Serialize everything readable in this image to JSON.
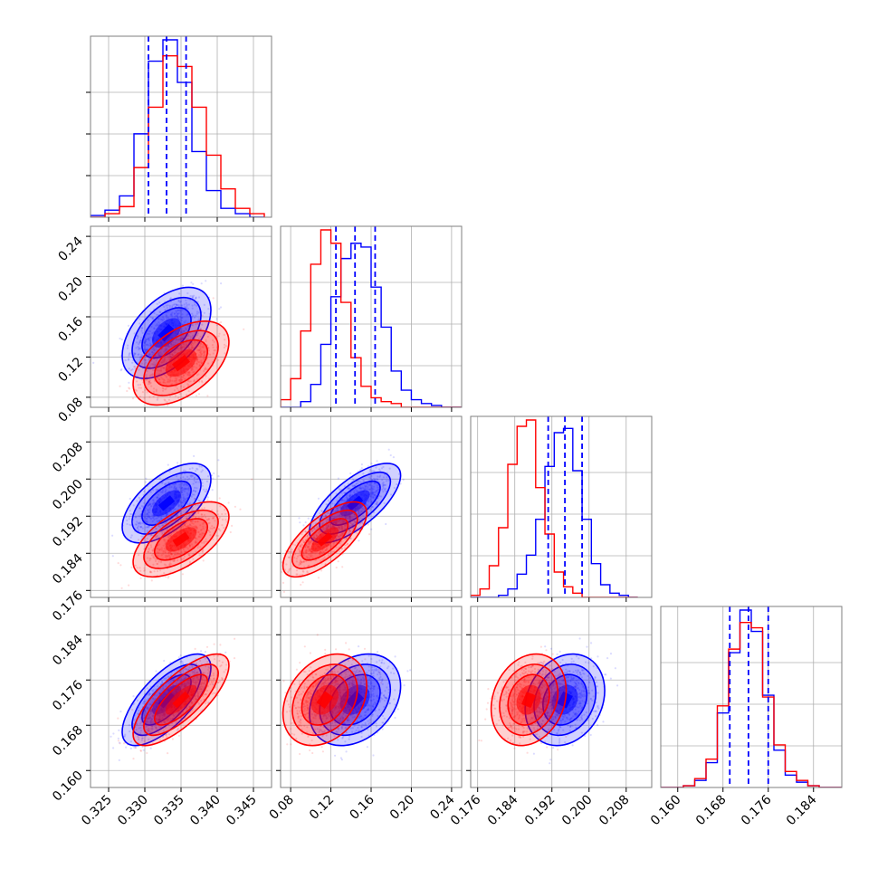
{
  "chart_data": {
    "type": "corner",
    "grid": true,
    "colors": {
      "blue": "#0000ff",
      "red": "#ff0000"
    },
    "params": [
      {
        "range": [
          0.3225,
          0.3475
        ],
        "ticks": [
          "0.325",
          "0.330",
          "0.335",
          "0.340",
          "0.345"
        ],
        "tick_values": [
          0.325,
          0.33,
          0.335,
          0.34,
          0.345
        ]
      },
      {
        "range": [
          0.07,
          0.25
        ],
        "ticks": [
          "0.08",
          "0.12",
          "0.16",
          "0.20",
          "0.24"
        ],
        "tick_values": [
          0.08,
          0.12,
          0.16,
          0.2,
          0.24
        ]
      },
      {
        "range": [
          0.1745,
          0.2135
        ],
        "ticks": [
          "0.176",
          "0.184",
          "0.192",
          "0.200",
          "0.208"
        ],
        "tick_values": [
          0.176,
          0.184,
          0.192,
          0.2,
          0.208
        ]
      },
      {
        "range": [
          0.157,
          0.189
        ],
        "ticks": [
          "0.160",
          "0.168",
          "0.176",
          "0.184"
        ],
        "tick_values": [
          0.16,
          0.168,
          0.176,
          0.184
        ]
      }
    ],
    "series": [
      {
        "color": "blue",
        "means": [
          0.333,
          0.144,
          0.1948,
          0.1725
        ],
        "sds": [
          0.0025,
          0.0185,
          0.0035,
          0.0033
        ],
        "corr": [
          [
            1,
            0.5,
            0.6,
            0.7
          ],
          [
            0.5,
            1,
            0.7,
            0.3
          ],
          [
            0.6,
            0.7,
            1,
            0.2
          ],
          [
            0.7,
            0.3,
            0.2,
            1
          ]
        ]
      },
      {
        "color": "red",
        "means": [
          0.335,
          0.114,
          0.187,
          0.1725
        ],
        "sds": [
          0.0027,
          0.017,
          0.0033,
          0.0033
        ],
        "corr": [
          [
            1,
            0.5,
            0.6,
            0.75
          ],
          [
            0.5,
            1,
            0.7,
            0.3
          ],
          [
            0.6,
            0.7,
            1,
            0.2
          ],
          [
            0.75,
            0.3,
            0.2,
            1
          ]
        ]
      }
    ],
    "quantile_lines": [
      [
        0.3305,
        0.333,
        0.3357
      ],
      [
        0.125,
        0.144,
        0.164
      ],
      [
        0.1912,
        0.1948,
        0.1985
      ],
      [
        0.1692,
        0.1725,
        0.176
      ]
    ],
    "histograms": [
      {
        "edges": [
          0.3225,
          0.3245,
          0.3265,
          0.3285,
          0.3305,
          0.3325,
          0.3345,
          0.3365,
          0.3385,
          0.3405,
          0.3425,
          0.3445,
          0.3465
        ],
        "blue": [
          0.01,
          0.04,
          0.12,
          0.47,
          0.88,
          1.0,
          0.76,
          0.37,
          0.15,
          0.05,
          0.02,
          0.0
        ],
        "red": [
          0.0,
          0.02,
          0.06,
          0.28,
          0.62,
          0.91,
          0.85,
          0.62,
          0.35,
          0.16,
          0.05,
          0.02
        ]
      },
      {
        "edges": [
          0.07,
          0.08,
          0.09,
          0.1,
          0.11,
          0.12,
          0.13,
          0.14,
          0.15,
          0.16,
          0.17,
          0.18,
          0.19,
          0.2,
          0.21,
          0.22,
          0.23,
          0.24,
          0.25
        ],
        "blue": [
          0.0,
          0.0,
          0.03,
          0.12,
          0.33,
          0.58,
          0.78,
          0.86,
          0.84,
          0.63,
          0.42,
          0.19,
          0.09,
          0.04,
          0.02,
          0.01,
          0.0,
          0.0
        ],
        "red": [
          0.04,
          0.15,
          0.4,
          0.75,
          0.93,
          0.86,
          0.55,
          0.26,
          0.11,
          0.05,
          0.03,
          0.02,
          0.0,
          0.0,
          0.0,
          0.0,
          0.0,
          0.0
        ]
      },
      {
        "edges": [
          0.1745,
          0.1765,
          0.1785,
          0.1805,
          0.1825,
          0.1845,
          0.1865,
          0.1885,
          0.1905,
          0.1925,
          0.1945,
          0.1965,
          0.1985,
          0.2005,
          0.2025,
          0.2045,
          0.2065,
          0.2085,
          0.2105
        ],
        "blue": [
          0.0,
          0.0,
          0.0,
          0.01,
          0.04,
          0.11,
          0.2,
          0.37,
          0.62,
          0.78,
          0.8,
          0.6,
          0.37,
          0.16,
          0.06,
          0.02,
          0.01,
          0.0
        ],
        "red": [
          0.01,
          0.04,
          0.15,
          0.33,
          0.63,
          0.81,
          0.84,
          0.52,
          0.3,
          0.12,
          0.05,
          0.02,
          0.0,
          0.0,
          0.0,
          0.0,
          0.0,
          0.0
        ]
      },
      {
        "edges": [
          0.157,
          0.159,
          0.161,
          0.163,
          0.165,
          0.167,
          0.169,
          0.171,
          0.173,
          0.175,
          0.177,
          0.179,
          0.181,
          0.183,
          0.185,
          0.187,
          0.189
        ],
        "blue": [
          0.0,
          0.0,
          0.01,
          0.04,
          0.14,
          0.42,
          0.76,
          1.0,
          0.88,
          0.52,
          0.21,
          0.07,
          0.03,
          0.01,
          0.0,
          0.0
        ],
        "red": [
          0.0,
          0.0,
          0.01,
          0.05,
          0.16,
          0.46,
          0.78,
          0.93,
          0.9,
          0.51,
          0.24,
          0.09,
          0.04,
          0.01,
          0.0,
          0.0
        ]
      }
    ]
  }
}
